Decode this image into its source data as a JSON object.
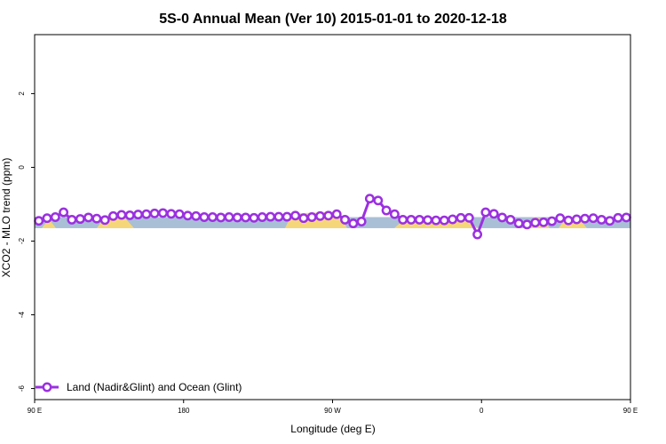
{
  "chart_data": {
    "type": "line",
    "title": "5S-0 Annual Mean (Ver 10)   2015-01-01 to 2020-12-18",
    "xlabel": "Longitude (deg E)",
    "ylabel": "XCO2 - MLO trend (ppm)",
    "xlim": [
      90,
      450
    ],
    "ylim": [
      -6.3,
      3.6
    ],
    "x_ticks": [
      {
        "value": 90,
        "label": "90 E"
      },
      {
        "value": 180,
        "label": "180"
      },
      {
        "value": 270,
        "label": "90 W"
      },
      {
        "value": 360,
        "label": "0"
      },
      {
        "value": 450,
        "label": "90 E"
      }
    ],
    "y_ticks": [
      {
        "value": 2,
        "label": "2"
      },
      {
        "value": 0,
        "label": "0"
      },
      {
        "value": -2,
        "label": "-2"
      },
      {
        "value": -4,
        "label": "-4"
      },
      {
        "value": -6,
        "label": "-6"
      }
    ],
    "legend_position": "bottom-left",
    "grid": false,
    "colors": {
      "series": "#9b30e0",
      "ocean": "#a9bfd6",
      "land": "#f5d77a"
    },
    "series": [
      {
        "name": "Land (Nadir&Glint) and Ocean (Glint)",
        "x": [
          92.5,
          97.5,
          102.5,
          107.5,
          112.5,
          117.5,
          122.5,
          127.5,
          132.5,
          137.5,
          142.5,
          147.5,
          152.5,
          157.5,
          162.5,
          167.5,
          172.5,
          177.5,
          182.5,
          187.5,
          192.5,
          197.5,
          202.5,
          207.5,
          212.5,
          217.5,
          222.5,
          227.5,
          232.5,
          237.5,
          242.5,
          247.5,
          252.5,
          257.5,
          262.5,
          267.5,
          272.5,
          277.5,
          282.5,
          287.5,
          292.5,
          297.5,
          302.5,
          307.5,
          312.5,
          317.5,
          322.5,
          327.5,
          332.5,
          337.5,
          342.5,
          347.5,
          352.5,
          357.5,
          362.5,
          367.5,
          372.5,
          377.5,
          382.5,
          387.5,
          392.5,
          397.5,
          402.5,
          407.5,
          412.5,
          417.5,
          422.5,
          427.5,
          432.5,
          437.5,
          442.5,
          447.5
        ],
        "y": [
          -1.45,
          -1.38,
          -1.35,
          -1.22,
          -1.42,
          -1.4,
          -1.36,
          -1.39,
          -1.43,
          -1.32,
          -1.29,
          -1.3,
          -1.28,
          -1.27,
          -1.25,
          -1.24,
          -1.26,
          -1.27,
          -1.31,
          -1.32,
          -1.35,
          -1.35,
          -1.36,
          -1.35,
          -1.36,
          -1.36,
          -1.37,
          -1.35,
          -1.34,
          -1.34,
          -1.34,
          -1.31,
          -1.38,
          -1.35,
          -1.32,
          -1.31,
          -1.27,
          -1.42,
          -1.52,
          -1.47,
          -0.85,
          -0.9,
          -1.17,
          -1.27,
          -1.42,
          -1.42,
          -1.42,
          -1.43,
          -1.44,
          -1.44,
          -1.41,
          -1.37,
          -1.37,
          -1.82,
          -1.22,
          -1.26,
          -1.36,
          -1.42,
          -1.52,
          -1.55,
          -1.5,
          -1.49,
          -1.46,
          -1.38,
          -1.44,
          -1.41,
          -1.39,
          -1.38,
          -1.42,
          -1.45,
          -1.37,
          -1.36
        ]
      }
    ]
  }
}
